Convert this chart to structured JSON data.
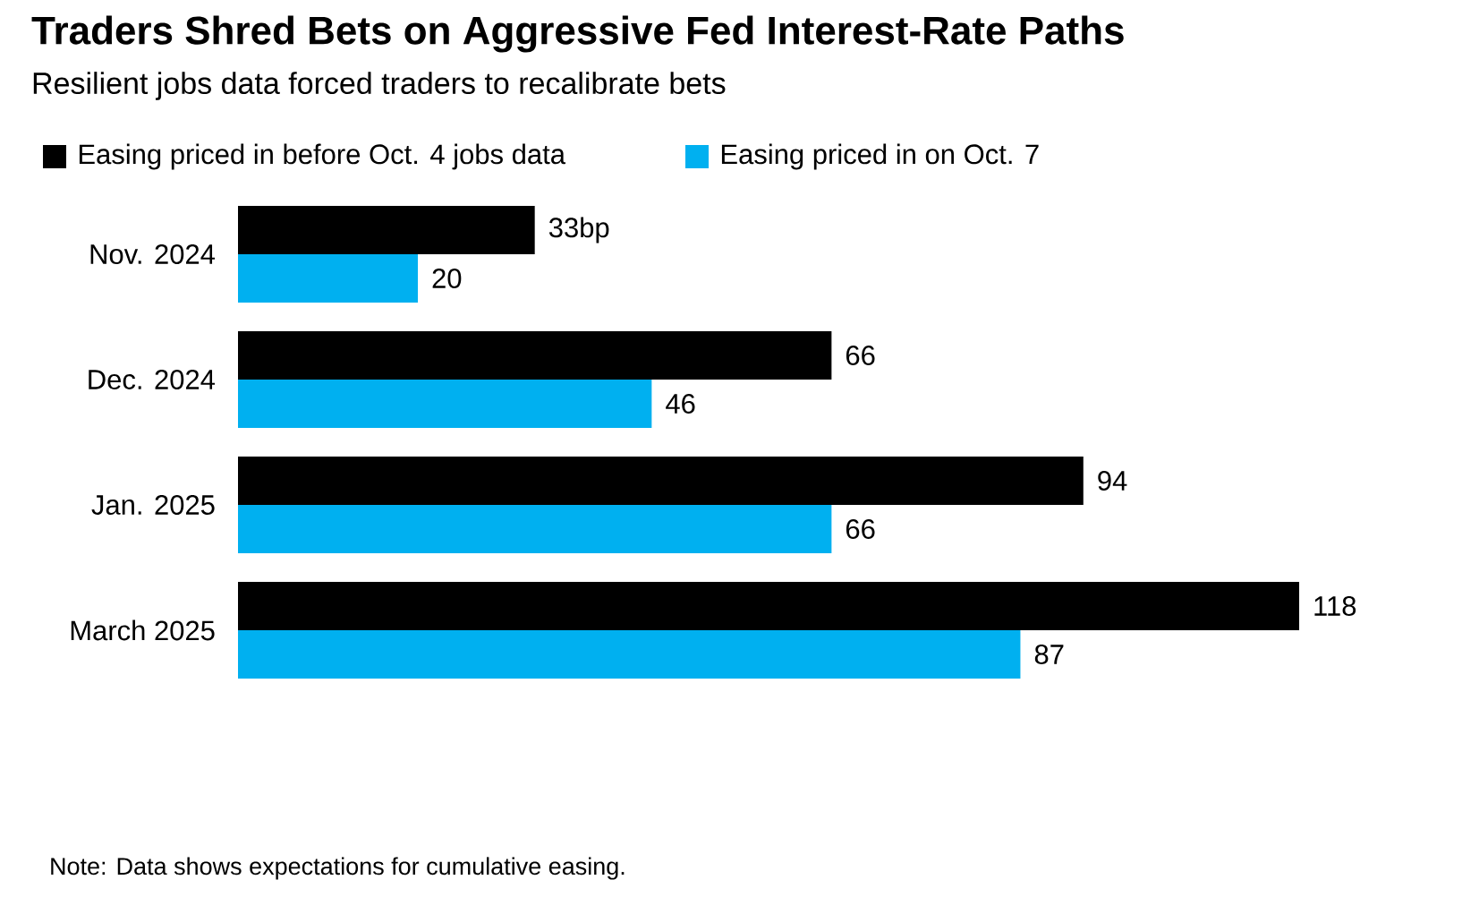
{
  "chart_data": {
    "type": "bar",
    "orientation": "horizontal",
    "title": "Traders Shred Bets on Aggressive Fed Interest-Rate Paths",
    "subtitle": "Resilient jobs data forced traders to recalibrate bets",
    "categories": [
      "Nov. 2024",
      "Dec. 2024",
      "Jan. 2025",
      "March 2025"
    ],
    "series": [
      {
        "name": "Easing priced in before Oct. 4 jobs data",
        "color": "#000000",
        "values": [
          33,
          66,
          94,
          118
        ],
        "value_labels": [
          "33bp",
          "66",
          "94",
          "118"
        ]
      },
      {
        "name": "Easing priced in on Oct. 7",
        "color": "#00b0f0",
        "values": [
          20,
          46,
          66,
          87
        ],
        "value_labels": [
          "20",
          "46",
          "66",
          "87"
        ]
      }
    ],
    "legend": "top",
    "annotations": [
      "Note: Data shows expectations for cumulative easing."
    ]
  }
}
